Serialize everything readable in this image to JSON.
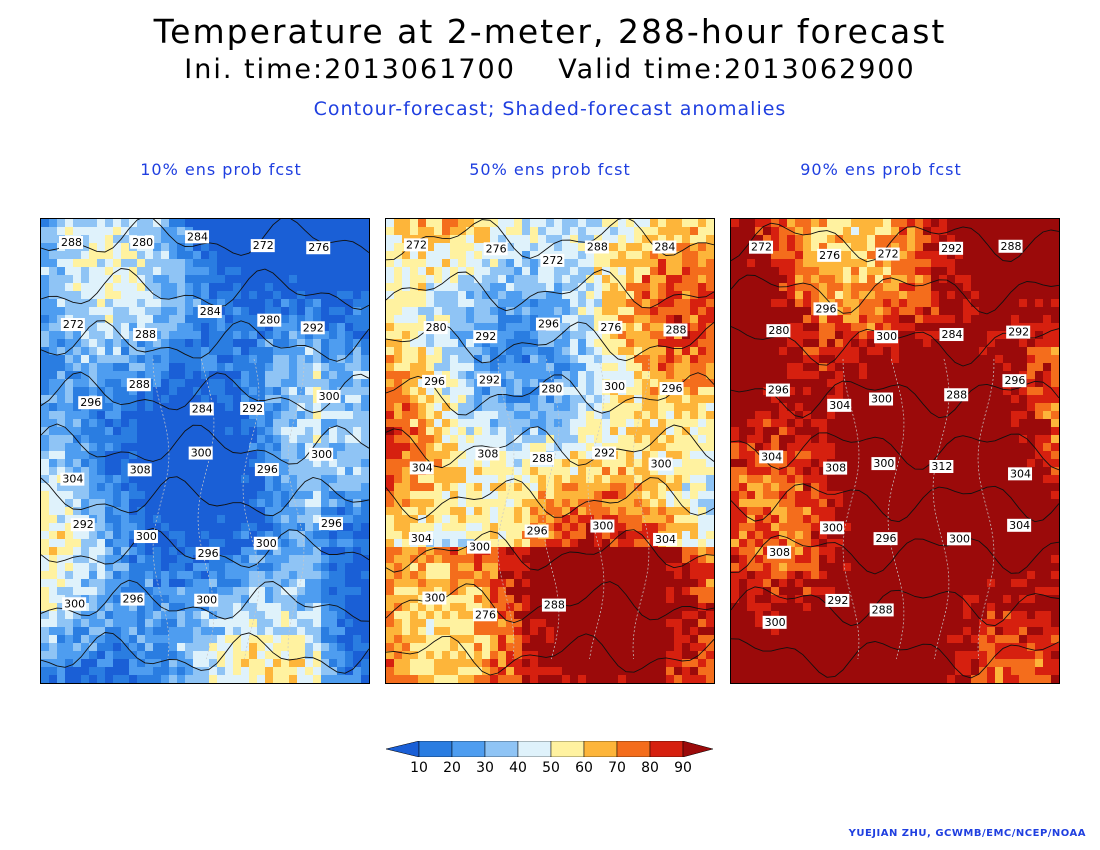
{
  "header": {
    "title": "Temperature at 2-meter, 288-hour forecast",
    "subtitle": "Ini. time:2013061700    Valid time:2013062900",
    "description": "Contour-forecast; Shaded-forecast anomalies"
  },
  "panels": [
    {
      "id": "p10",
      "title": "10% ens prob fcst",
      "labels": [
        "288",
        "280",
        "284",
        "272",
        "276",
        "272",
        "288",
        "284",
        "280",
        "292",
        "296",
        "288",
        "284",
        "292",
        "300",
        "304",
        "308",
        "300",
        "296",
        "300",
        "292",
        "300",
        "296",
        "300",
        "296",
        "300",
        "296",
        "300"
      ]
    },
    {
      "id": "p50",
      "title": "50% ens prob fcst",
      "labels": [
        "272",
        "276",
        "272",
        "288",
        "284",
        "280",
        "292",
        "296",
        "276",
        "288",
        "296",
        "292",
        "280",
        "300",
        "296",
        "304",
        "308",
        "288",
        "292",
        "300",
        "304",
        "300",
        "296",
        "300",
        "304",
        "300",
        "276",
        "288"
      ]
    },
    {
      "id": "p90",
      "title": "90% ens prob fcst",
      "labels": [
        "272",
        "276",
        "272",
        "292",
        "288",
        "280",
        "296",
        "300",
        "284",
        "292",
        "296",
        "304",
        "300",
        "288",
        "296",
        "304",
        "308",
        "300",
        "312",
        "304",
        "308",
        "300",
        "296",
        "300",
        "304",
        "300",
        "292",
        "288"
      ]
    }
  ],
  "colorbar": {
    "ticks": [
      "10",
      "20",
      "30",
      "40",
      "50",
      "60",
      "70",
      "80",
      "90"
    ],
    "colors": [
      "#1a5fd6",
      "#2a7de1",
      "#4e9df0",
      "#8fc4f5",
      "#dff2fb",
      "#fff2a0",
      "#fdb53a",
      "#f46d1c",
      "#d6200f",
      "#9b0a0a"
    ]
  },
  "credit": "YUEJIAN ZHU, GCWMB/EMC/NCEP/NOAA"
}
